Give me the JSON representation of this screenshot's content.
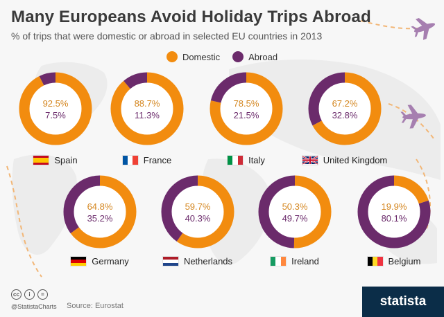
{
  "header": {
    "title": "Many Europeans Avoid Holiday Trips Abroad",
    "subtitle": "% of trips that were domestic or abroad in selected EU countries in 2013"
  },
  "colors": {
    "domestic": "#f28c0f",
    "abroad": "#6b2b6b",
    "domestic_text": "#d4861f",
    "abroad_text": "#6b2b6b"
  },
  "chart_data": {
    "type": "pie",
    "title": "Many Europeans Avoid Holiday Trips Abroad",
    "subtitle": "% of trips that were domestic or abroad in selected EU countries in 2013",
    "legend": {
      "placement": "top-center",
      "entries": [
        "Domestic",
        "Abroad"
      ]
    },
    "series_names": [
      "Domestic",
      "Abroad"
    ],
    "countries": [
      {
        "name": "Spain",
        "flag": "spain",
        "domestic": 92.5,
        "abroad": 7.5,
        "domestic_label": "92.5%",
        "abroad_label": "7.5%"
      },
      {
        "name": "France",
        "flag": "france",
        "domestic": 88.7,
        "abroad": 11.3,
        "domestic_label": "88.7%",
        "abroad_label": "11.3%"
      },
      {
        "name": "Italy",
        "flag": "italy",
        "domestic": 78.5,
        "abroad": 21.5,
        "domestic_label": "78.5%",
        "abroad_label": "21.5%"
      },
      {
        "name": "United Kingdom",
        "flag": "uk",
        "domestic": 67.2,
        "abroad": 32.8,
        "domestic_label": "67.2%",
        "abroad_label": "32.8%"
      },
      {
        "name": "Germany",
        "flag": "germany",
        "domestic": 64.8,
        "abroad": 35.2,
        "domestic_label": "64.8%",
        "abroad_label": "35.2%"
      },
      {
        "name": "Netherlands",
        "flag": "netherlands",
        "domestic": 59.7,
        "abroad": 40.3,
        "domestic_label": "59.7%",
        "abroad_label": "40.3%"
      },
      {
        "name": "Ireland",
        "flag": "ireland",
        "domestic": 50.3,
        "abroad": 49.7,
        "domestic_label": "50.3%",
        "abroad_label": "49.7%"
      },
      {
        "name": "Belgium",
        "flag": "belgium",
        "domestic": 19.9,
        "abroad": 80.1,
        "domestic_label": "19.9%",
        "abroad_label": "80.1%"
      }
    ]
  },
  "footer": {
    "license_icons": [
      "cc-icon",
      "by-icon",
      "nd-icon"
    ],
    "handle": "@StatistaCharts",
    "source": "Source: Eurostat",
    "brand": "statista"
  }
}
